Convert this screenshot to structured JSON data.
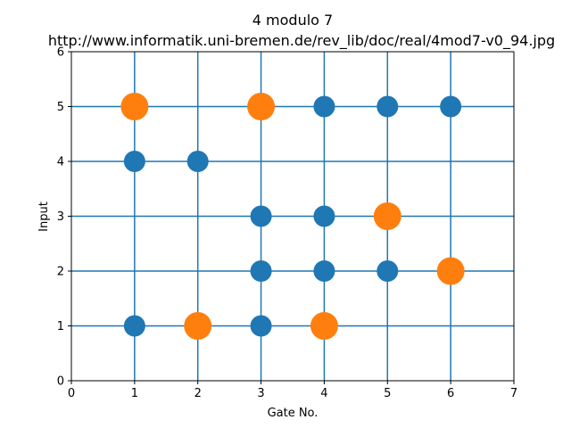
{
  "chart_data": {
    "type": "scatter",
    "title": "4 modulo 7",
    "subtitle": "http://www.informatik.uni-bremen.de/rev_lib/doc/real/4mod7-v0_94.jpg",
    "xlabel": "Gate No.",
    "ylabel": "Input",
    "xlim": [
      0,
      7
    ],
    "ylim": [
      0,
      6
    ],
    "xticks": [
      "0",
      "1",
      "2",
      "3",
      "4",
      "5",
      "6",
      "7"
    ],
    "yticks": [
      "0",
      "1",
      "2",
      "3",
      "4",
      "5",
      "6"
    ],
    "grid": true,
    "grid_lines_x": [
      1,
      2,
      3,
      4,
      5,
      6
    ],
    "grid_lines_y": [
      1,
      2,
      3,
      4,
      5
    ],
    "legend": "none",
    "series": [
      {
        "color": "#1f77b4",
        "points": [
          [
            1,
            4
          ],
          [
            1,
            1
          ],
          [
            2,
            4
          ],
          [
            3,
            3
          ],
          [
            3,
            2
          ],
          [
            3,
            1
          ],
          [
            4,
            5
          ],
          [
            4,
            3
          ],
          [
            4,
            2
          ],
          [
            5,
            5
          ],
          [
            5,
            2
          ],
          [
            6,
            5
          ]
        ]
      },
      {
        "color": "#ff7f0e",
        "points": [
          [
            1,
            5
          ],
          [
            2,
            1
          ],
          [
            3,
            5
          ],
          [
            4,
            1
          ],
          [
            5,
            3
          ],
          [
            6,
            2
          ]
        ]
      }
    ]
  }
}
